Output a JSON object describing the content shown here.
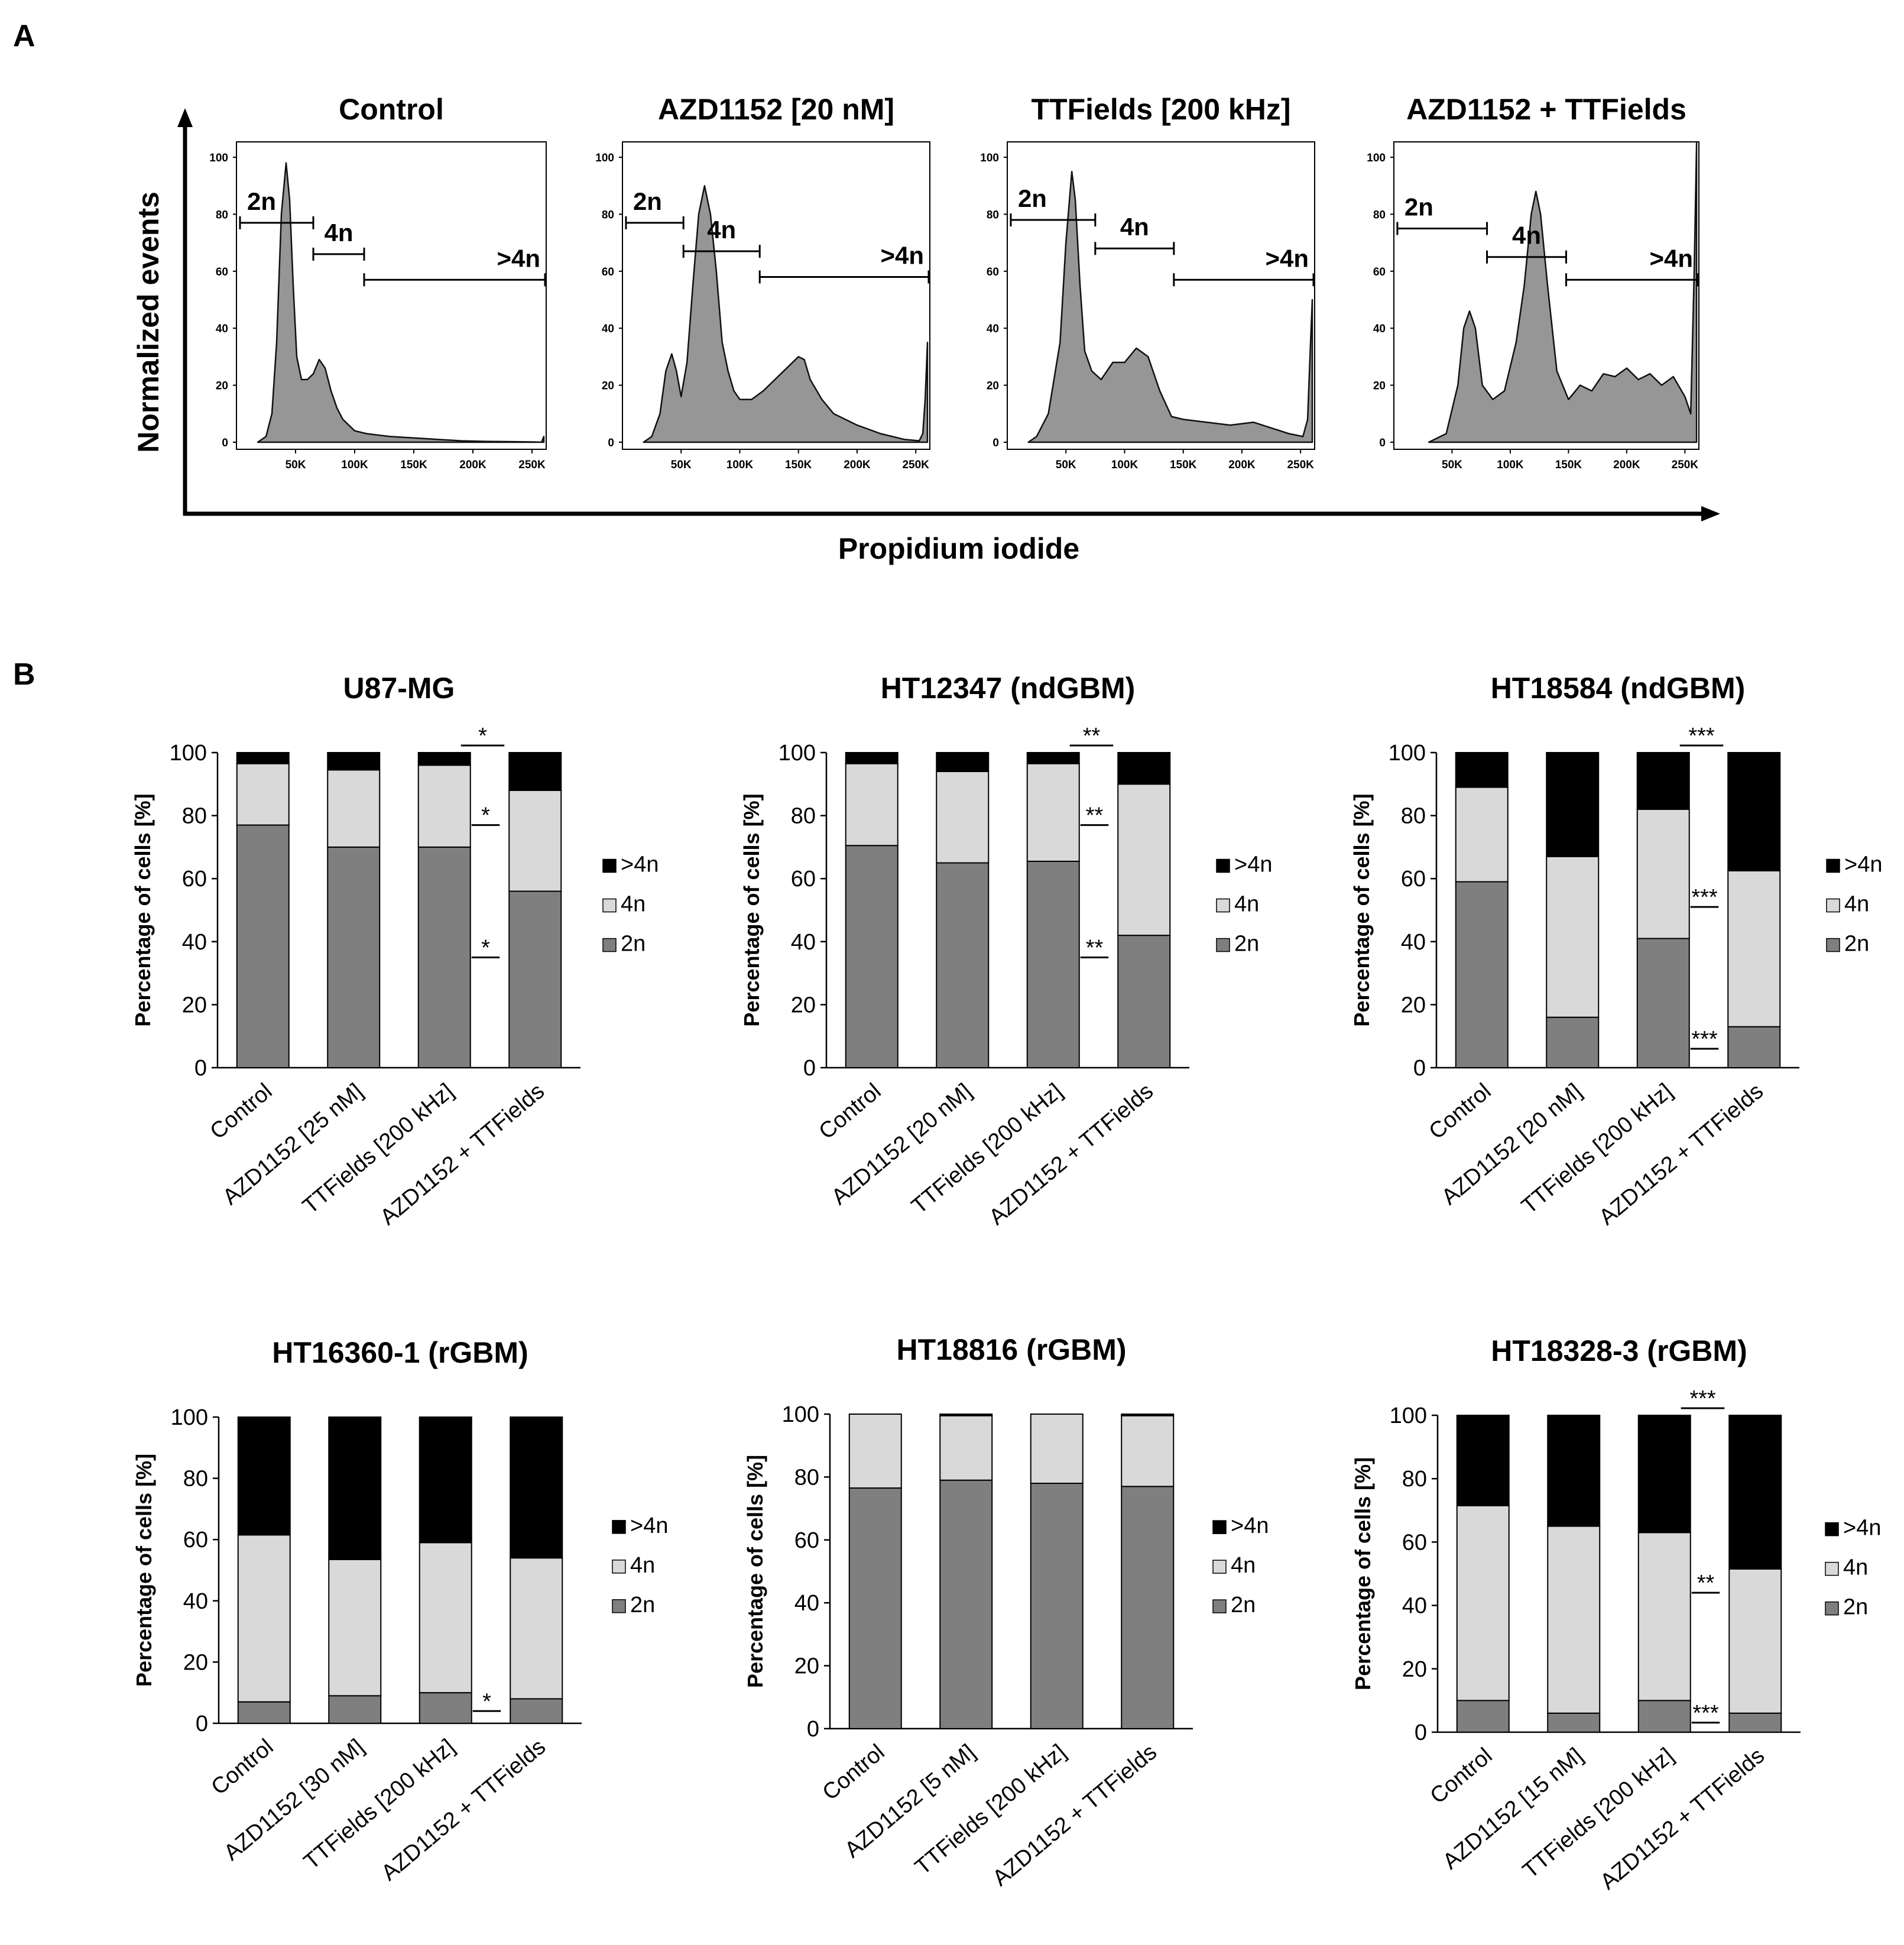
{
  "panel_labels": {
    "a": "A",
    "b": "B"
  },
  "colors": {
    "2n": "#7f7f7f",
    "4n": "#d9d9d9",
    ">4n": "#000000",
    "histogram_fill": "#969696"
  },
  "histogram_axes": {
    "y_label": "Normalized events",
    "x_label": "Propidium iodide"
  },
  "chart_data": [
    {
      "type": "area",
      "title": "Control",
      "x_ticks": [
        "50K",
        "100K",
        "150K",
        "200K",
        "250K"
      ],
      "x_tick_values": [
        50000,
        100000,
        150000,
        200000,
        250000
      ],
      "xlim": [
        0,
        262000
      ],
      "y_ticks": [
        "0",
        "20",
        "40",
        "60",
        "80",
        "100"
      ],
      "ylim": [
        0,
        105
      ],
      "x": [
        18000,
        25000,
        30000,
        34000,
        38000,
        42000,
        45000,
        48000,
        51000,
        55000,
        60000,
        65000,
        70000,
        75000,
        80000,
        85000,
        90000,
        95000,
        100000,
        110000,
        120000,
        130000,
        150000,
        170000,
        190000,
        210000,
        230000,
        250000,
        258000,
        260000
      ],
      "values": [
        0,
        2,
        10,
        35,
        80,
        98,
        85,
        55,
        30,
        22,
        22,
        24,
        29,
        26,
        18,
        12,
        8,
        6,
        4,
        3,
        2.5,
        2,
        1.5,
        1,
        0.5,
        0.3,
        0.2,
        0.1,
        0,
        2
      ],
      "gates": [
        {
          "label": "2n",
          "from": 3000,
          "to": 65000,
          "level": 77
        },
        {
          "label": "4n",
          "from": 65000,
          "to": 108000,
          "level": 66
        },
        {
          "label": ">4n",
          "from": 108000,
          "to": 262000,
          "level": 57
        }
      ]
    },
    {
      "type": "area",
      "title": "AZD1152 [20 nM]",
      "x_ticks": [
        "50K",
        "100K",
        "150K",
        "200K",
        "250K"
      ],
      "x_tick_values": [
        50000,
        100000,
        150000,
        200000,
        250000
      ],
      "xlim": [
        0,
        262000
      ],
      "y_ticks": [
        "0",
        "20",
        "40",
        "60",
        "80",
        "100"
      ],
      "ylim": [
        0,
        105
      ],
      "x": [
        18000,
        25000,
        32000,
        37000,
        42000,
        46000,
        50000,
        55000,
        60000,
        65000,
        70000,
        75000,
        80000,
        85000,
        90000,
        95000,
        100000,
        110000,
        120000,
        130000,
        140000,
        150000,
        155000,
        160000,
        170000,
        180000,
        200000,
        220000,
        240000,
        253000,
        256000,
        258000,
        260000
      ],
      "values": [
        0,
        2,
        10,
        25,
        31,
        25,
        16,
        28,
        55,
        80,
        90,
        80,
        60,
        35,
        25,
        18,
        15,
        15,
        18,
        22,
        26,
        30,
        29,
        22,
        15,
        10,
        6,
        3,
        1,
        0.5,
        3,
        15,
        35
      ],
      "gates": [
        {
          "label": "2n",
          "from": 3000,
          "to": 52000,
          "level": 77
        },
        {
          "label": "4n",
          "from": 52000,
          "to": 117000,
          "level": 67
        },
        {
          "label": ">4n",
          "from": 117000,
          "to": 262000,
          "level": 58
        }
      ]
    },
    {
      "type": "area",
      "title": "TTFields [200 kHz]",
      "x_ticks": [
        "50K",
        "100K",
        "150K",
        "200K",
        "250K"
      ],
      "x_tick_values": [
        50000,
        100000,
        150000,
        200000,
        250000
      ],
      "xlim": [
        0,
        262000
      ],
      "y_ticks": [
        "0",
        "20",
        "40",
        "60",
        "80",
        "100"
      ],
      "ylim": [
        0,
        105
      ],
      "x": [
        18000,
        25000,
        35000,
        45000,
        50000,
        55000,
        58000,
        62000,
        66000,
        72000,
        80000,
        90000,
        100000,
        110000,
        120000,
        130000,
        140000,
        150000,
        170000,
        190000,
        210000,
        225000,
        240000,
        252000,
        256000,
        258000,
        260000
      ],
      "values": [
        0,
        2,
        10,
        35,
        70,
        95,
        85,
        55,
        32,
        25,
        22,
        28,
        28,
        33,
        30,
        18,
        9,
        8,
        7,
        6,
        7,
        5,
        3,
        2,
        8,
        30,
        50
      ],
      "gates": [
        {
          "label": "2n",
          "from": 3000,
          "to": 75000,
          "level": 78
        },
        {
          "label": "4n",
          "from": 75000,
          "to": 142000,
          "level": 68
        },
        {
          "label": ">4n",
          "from": 142000,
          "to": 262000,
          "level": 57
        }
      ]
    },
    {
      "type": "area",
      "title": "AZD1152 + TTFields",
      "x_ticks": [
        "50K",
        "100K",
        "150K",
        "200K",
        "250K"
      ],
      "x_tick_values": [
        50000,
        100000,
        150000,
        200000,
        250000
      ],
      "xlim": [
        0,
        262000
      ],
      "y_ticks": [
        "0",
        "20",
        "40",
        "60",
        "80",
        "100"
      ],
      "ylim": [
        0,
        105
      ],
      "x": [
        30000,
        45000,
        55000,
        60000,
        65000,
        70000,
        76000,
        85000,
        95000,
        105000,
        112000,
        118000,
        122000,
        126000,
        132000,
        140000,
        150000,
        160000,
        170000,
        180000,
        190000,
        200000,
        210000,
        220000,
        230000,
        240000,
        250000,
        255000,
        258000,
        260000
      ],
      "values": [
        0,
        3,
        20,
        40,
        46,
        40,
        20,
        15,
        18,
        35,
        55,
        80,
        88,
        80,
        55,
        25,
        15,
        20,
        18,
        24,
        23,
        26,
        22,
        24,
        20,
        23,
        16,
        10,
        60,
        105
      ],
      "gates": [
        {
          "label": "2n",
          "from": 3000,
          "to": 80000,
          "level": 75
        },
        {
          "label": "4n",
          "from": 80000,
          "to": 148000,
          "level": 65
        },
        {
          "label": ">4n",
          "from": 148000,
          "to": 262000,
          "level": 57
        }
      ]
    },
    {
      "type": "bar",
      "stacked": true,
      "title": "U87-MG",
      "ylabel": "Percentage of cells [%]",
      "ylim": [
        0,
        100
      ],
      "y_ticks": [
        "0",
        "20",
        "40",
        "60",
        "80",
        "100"
      ],
      "categories": [
        "Control",
        "AZD1152 [25 nM]",
        "TTFields [200 kHz]",
        "AZD1152 + TTFields"
      ],
      "series": [
        {
          "name": "2n",
          "values": [
            77,
            70,
            70,
            56
          ]
        },
        {
          "name": "4n",
          "values": [
            19.5,
            24.5,
            26,
            32
          ]
        },
        {
          "name": ">4n",
          "values": [
            3.5,
            5.5,
            4,
            12
          ]
        }
      ],
      "legend": [
        ">4n",
        "4n",
        "2n"
      ],
      "legend_position": "right",
      "annotations": [
        {
          "text": "*",
          "at": 100,
          "span": "top"
        },
        {
          "text": "*",
          "at": 77,
          "span": "gap"
        },
        {
          "text": "*",
          "at": 35,
          "span": "gap"
        }
      ]
    },
    {
      "type": "bar",
      "stacked": true,
      "title": "HT12347 (ndGBM)",
      "ylabel": "Percentage of cells [%]",
      "ylim": [
        0,
        100
      ],
      "y_ticks": [
        "0",
        "20",
        "40",
        "60",
        "80",
        "100"
      ],
      "categories": [
        "Control",
        "AZD1152 [20 nM]",
        "TTFields [200 kHz]",
        "AZD1152 + TTFields"
      ],
      "series": [
        {
          "name": "2n",
          "values": [
            70.5,
            65,
            65.5,
            42
          ]
        },
        {
          "name": "4n",
          "values": [
            26,
            29,
            31,
            48
          ]
        },
        {
          "name": ">4n",
          "values": [
            3.5,
            6,
            3.5,
            10
          ]
        }
      ],
      "legend": [
        ">4n",
        "4n",
        "2n"
      ],
      "legend_position": "right",
      "annotations": [
        {
          "text": "**",
          "at": 100,
          "span": "top"
        },
        {
          "text": "**",
          "at": 77,
          "span": "gap"
        },
        {
          "text": "**",
          "at": 35,
          "span": "gap"
        }
      ]
    },
    {
      "type": "bar",
      "stacked": true,
      "title": "HT18584 (ndGBM)",
      "ylabel": "Percentage of cells [%]",
      "ylim": [
        0,
        100
      ],
      "y_ticks": [
        "0",
        "20",
        "40",
        "60",
        "80",
        "100"
      ],
      "categories": [
        "Control",
        "AZD1152 [20 nM]",
        "TTFields [200 kHz]",
        "AZD1152 + TTFields"
      ],
      "series": [
        {
          "name": "2n",
          "values": [
            59,
            16,
            41,
            13
          ]
        },
        {
          "name": "4n",
          "values": [
            30,
            51,
            41,
            49.5
          ]
        },
        {
          "name": ">4n",
          "values": [
            11,
            33,
            18,
            37.5
          ]
        }
      ],
      "legend": [
        ">4n",
        "4n",
        "2n"
      ],
      "legend_position": "right",
      "annotations": [
        {
          "text": "***",
          "at": 100,
          "span": "top"
        },
        {
          "text": "***",
          "at": 51,
          "span": "gap"
        },
        {
          "text": "***",
          "at": 6,
          "span": "gap"
        }
      ]
    },
    {
      "type": "bar",
      "stacked": true,
      "title": "HT16360-1 (rGBM)",
      "ylabel": "Percentage of cells [%]",
      "ylim": [
        0,
        100
      ],
      "y_ticks": [
        "0",
        "20",
        "40",
        "60",
        "80",
        "100"
      ],
      "categories": [
        "Control",
        "AZD1152 [30 nM]",
        "TTFields [200 kHz]",
        "AZD1152 + TTFields"
      ],
      "series": [
        {
          "name": "2n",
          "values": [
            7,
            9,
            10,
            8
          ]
        },
        {
          "name": "4n",
          "values": [
            54.5,
            44.5,
            49,
            46
          ]
        },
        {
          "name": ">4n",
          "values": [
            38.5,
            46.5,
            41,
            46
          ]
        }
      ],
      "legend": [
        ">4n",
        "4n",
        "2n"
      ],
      "legend_position": "right",
      "annotations": [
        {
          "text": "*",
          "at": 4,
          "span": "gap"
        }
      ]
    },
    {
      "type": "bar",
      "stacked": true,
      "title": "HT18816 (rGBM)",
      "ylabel": "Percentage of cells [%]",
      "ylim": [
        0,
        100
      ],
      "y_ticks": [
        "0",
        "20",
        "40",
        "60",
        "80",
        "100"
      ],
      "categories": [
        "Control",
        "AZD1152 [5 nM]",
        "TTFields [200 kHz]",
        "AZD1152 + TTFields"
      ],
      "series": [
        {
          "name": "2n",
          "values": [
            76.5,
            79,
            78,
            77
          ]
        },
        {
          "name": "4n",
          "values": [
            23.5,
            20.5,
            22,
            22.5
          ]
        },
        {
          "name": ">4n",
          "values": [
            0,
            0.5,
            0,
            0.5
          ]
        }
      ],
      "legend": [
        ">4n",
        "4n",
        "2n"
      ],
      "legend_position": "right",
      "annotations": []
    },
    {
      "type": "bar",
      "stacked": true,
      "title": "HT18328-3 (rGBM)",
      "ylabel": "Percentage of cells [%]",
      "ylim": [
        0,
        100
      ],
      "y_ticks": [
        "0",
        "20",
        "40",
        "60",
        "80",
        "100"
      ],
      "categories": [
        "Control",
        "AZD1152 [15 nM]",
        "TTFields [200 kHz]",
        "AZD1152 + TTFields"
      ],
      "series": [
        {
          "name": "2n",
          "values": [
            10,
            6,
            10,
            6
          ]
        },
        {
          "name": "4n",
          "values": [
            61.5,
            59,
            53,
            45.5
          ]
        },
        {
          "name": ">4n",
          "values": [
            28.5,
            35,
            37,
            48.5
          ]
        }
      ],
      "legend": [
        ">4n",
        "4n",
        "2n"
      ],
      "legend_position": "right",
      "annotations": [
        {
          "text": "***",
          "at": 100,
          "span": "top"
        },
        {
          "text": "**",
          "at": 44,
          "span": "gap"
        },
        {
          "text": "***",
          "at": 3,
          "span": "gap"
        }
      ]
    }
  ]
}
